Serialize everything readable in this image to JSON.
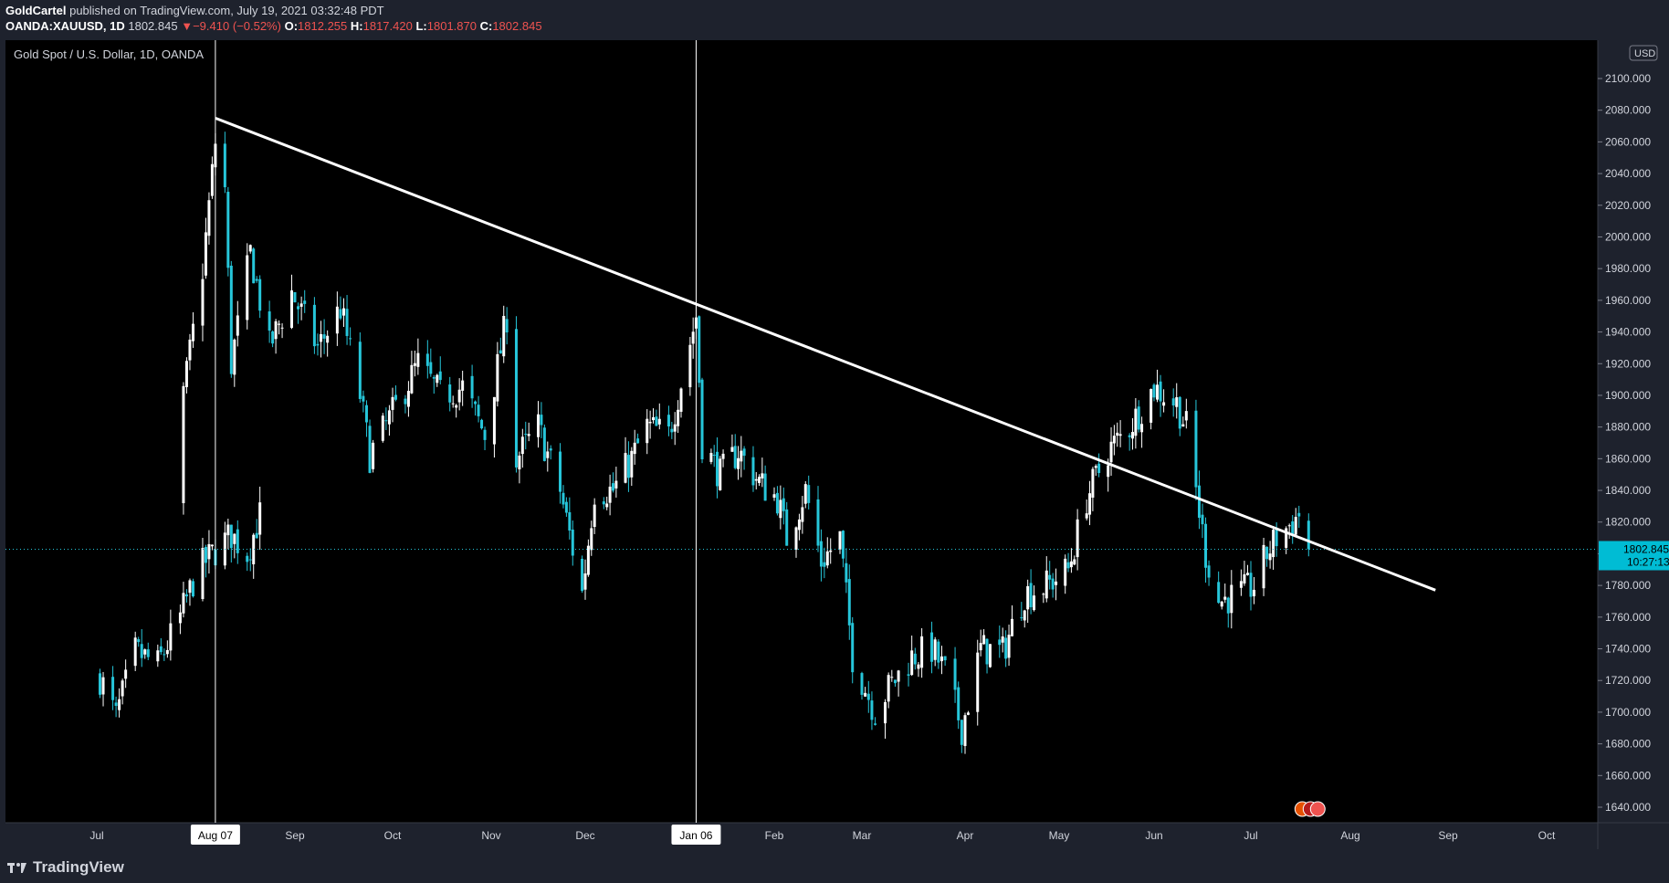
{
  "header": {
    "publisher": "GoldCartel",
    "published_text": "published on TradingView.com, July 19, 2021 03:32:48 PDT",
    "symbol": "OANDA:XAUUSD, 1D",
    "last": "1802.845",
    "change": "−9.410 (−0.52%)",
    "o_label": "O:",
    "o_value": "1812.255",
    "h_label": "H:",
    "h_value": "1817.420",
    "l_label": "L:",
    "l_value": "1801.870",
    "c_label": "C:",
    "c_value": "1802.845"
  },
  "footer": {
    "brand": "TradingView",
    "brand_icon": "tradingview-logo-icon"
  },
  "colors": {
    "background": "#000000",
    "panel": "#1e222d",
    "up": "#ffffff",
    "down": "#26c6da",
    "line": "#ffffff"
  },
  "chart_data": {
    "type": "candlestick",
    "title": "Gold Spot / U.S. Dollar, 1D, OANDA",
    "currency_badge": "USD",
    "x_ticks": [
      "Jul",
      "Aug 07",
      "Sep",
      "Oct",
      "Nov",
      "Dec",
      "Jan 06",
      "Feb",
      "Mar",
      "Apr",
      "May",
      "Jun",
      "Jul",
      "Aug",
      "Sep",
      "Oct"
    ],
    "y_ticks": [
      "1640.000",
      "1660.000",
      "1680.000",
      "1700.000",
      "1720.000",
      "1740.000",
      "1760.000",
      "1780.000",
      "1800.000",
      "1820.000",
      "1840.000",
      "1860.000",
      "1880.000",
      "1900.000",
      "1920.000",
      "1940.000",
      "1960.000",
      "1980.000",
      "2000.000",
      "2020.000",
      "2040.000",
      "2060.000",
      "2080.000",
      "2100.000"
    ],
    "ylim": [
      1630,
      2125
    ],
    "price_label": "1802.845",
    "countdown_label": "10:27:13",
    "current_price": 1802.845,
    "vertical_lines": [
      "Aug 07",
      "Jan 06"
    ],
    "trendline": {
      "start": {
        "date": "Aug 07",
        "price": 2075
      },
      "end": {
        "date": "Aug 28",
        "price": 1777
      }
    },
    "price_path": [
      [
        "Jul 02",
        1722
      ],
      [
        "Jul 07",
        1697
      ],
      [
        "Jul 13",
        1738
      ],
      [
        "Jul 20",
        1730
      ],
      [
        "Jul 27",
        1760
      ],
      [
        "Aug 01",
        1788
      ],
      [
        "Aug 06",
        1800
      ],
      [
        "Aug 12",
        1812
      ],
      [
        "Aug 17",
        1800
      ],
      [
        "Aug 22",
        1830
      ],
      [
        "Jul 28",
        1900
      ],
      [
        "Aug 03",
        1980
      ],
      [
        "Aug 07",
        2060
      ],
      [
        "Aug 10",
        2030
      ],
      [
        "Aug 12",
        1920
      ],
      [
        "Aug 18",
        1990
      ],
      [
        "Aug 24",
        1930
      ],
      [
        "Aug 31",
        1965
      ],
      [
        "Sep 08",
        1930
      ],
      [
        "Sep 15",
        1955
      ],
      [
        "Sep 21",
        1900
      ],
      [
        "Sep 24",
        1862
      ],
      [
        "Sep 30",
        1885
      ],
      [
        "Oct 09",
        1920
      ],
      [
        "Oct 16",
        1900
      ],
      [
        "Oct 23",
        1905
      ],
      [
        "Oct 30",
        1875
      ],
      [
        "Nov 06",
        1950
      ],
      [
        "Nov 09",
        1860
      ],
      [
        "Nov 16",
        1880
      ],
      [
        "Nov 23",
        1840
      ],
      [
        "Nov 30",
        1775
      ],
      [
        "Dec 04",
        1840
      ],
      [
        "Dec 10",
        1840
      ],
      [
        "Dec 16",
        1860
      ],
      [
        "Dec 21",
        1880
      ],
      [
        "Dec 28",
        1875
      ],
      [
        "Jan 06",
        1950
      ],
      [
        "Jan 08",
        1870
      ],
      [
        "Jan 14",
        1850
      ],
      [
        "Jan 20",
        1865
      ],
      [
        "Jan 27",
        1845
      ],
      [
        "Feb 02",
        1835
      ],
      [
        "Feb 05",
        1810
      ],
      [
        "Feb 11",
        1840
      ],
      [
        "Feb 16",
        1795
      ],
      [
        "Feb 22",
        1810
      ],
      [
        "Feb 26",
        1735
      ],
      [
        "Mar 05",
        1700
      ],
      [
        "Mar 09",
        1715
      ],
      [
        "Mar 16",
        1735
      ],
      [
        "Mar 22",
        1740
      ],
      [
        "Mar 26",
        1725
      ],
      [
        "Mar 31",
        1690
      ],
      [
        "Apr 06",
        1740
      ],
      [
        "Apr 13",
        1738
      ],
      [
        "Apr 20",
        1775
      ],
      [
        "Apr 27",
        1780
      ],
      [
        "May 04",
        1790
      ],
      [
        "May 10",
        1835
      ],
      [
        "May 17",
        1865
      ],
      [
        "May 24",
        1880
      ],
      [
        "Jun 01",
        1905
      ],
      [
        "Jun 08",
        1895
      ],
      [
        "Jun 11",
        1880
      ],
      [
        "Jun 17",
        1800
      ],
      [
        "Jun 21",
        1770
      ],
      [
        "Jun 28",
        1775
      ],
      [
        "Jul 02",
        1780
      ],
      [
        "Jul 06",
        1800
      ],
      [
        "Jul 09",
        1810
      ],
      [
        "Jul 14",
        1820
      ],
      [
        "Jul 16",
        1825
      ],
      [
        "Jul 19",
        1802.845
      ]
    ]
  }
}
